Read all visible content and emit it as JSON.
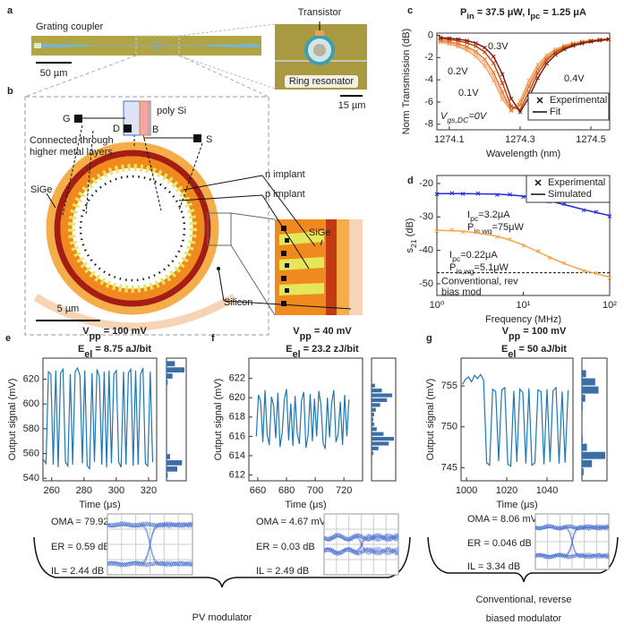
{
  "panel_labels": [
    "a",
    "b",
    "c",
    "d",
    "e",
    "f",
    "g"
  ],
  "panel_a": {
    "grating_coupler": "Grating coupler",
    "scale_left": "50 µm",
    "transistor": "Transistor",
    "ring_resonator": "Ring resonator",
    "scale_right": "15 µm"
  },
  "panel_b": {
    "poly_si": "poly Si",
    "g": "G",
    "d": "D",
    "b": "B",
    "s": "S",
    "connected": [
      "Connected through",
      "higher metal layers"
    ],
    "n_implant": "n implant",
    "p_implant": "p implant",
    "sige_left": "SiGe",
    "sige_right": "SiGe",
    "silicon": "Silicon",
    "scale": "5 µm"
  },
  "modulators": {
    "pv": "PV modulator",
    "conventional": [
      "Conventional, reverse",
      "biased modulator"
    ]
  },
  "chart_data": [
    {
      "type": "line",
      "title": [
        "P",
        "in",
        " = 37.5 μW, I",
        "pc",
        " = 1.25 μA"
      ],
      "xlabel": "Wavelength (nm)",
      "ylabel": "Norm Transmission (dB)",
      "xlim": [
        1274.065,
        1274.553
      ],
      "ylim": [
        -8.5,
        0.2
      ],
      "xticks": [
        1274.1,
        1274.3,
        1274.5
      ],
      "yticks": [
        0,
        -2,
        -4,
        -6,
        -8
      ],
      "legend": [
        "Experimental",
        "Fit"
      ],
      "x": [
        1274.075,
        1274.1,
        1274.125,
        1274.15,
        1274.175,
        1274.2,
        1274.225,
        1274.25,
        1274.275,
        1274.3,
        1274.325,
        1274.35,
        1274.375,
        1274.4,
        1274.425,
        1274.45,
        1274.475,
        1274.5,
        1274.525,
        1274.55
      ],
      "series": [
        {
          "label": [
            "V",
            "gs,DC",
            "=0V"
          ],
          "color": "#f6c29a",
          "values": [
            -0.54,
            -0.68,
            -0.89,
            -1.19,
            -1.67,
            -2.45,
            -3.7,
            -5.44,
            -6.75,
            -6.12,
            -4.35,
            -2.88,
            -1.94,
            -1.36,
            -0.99,
            -0.75,
            -0.59,
            -0.47,
            -0.38,
            -0.32
          ]
        },
        {
          "label": "0.1V",
          "color": "#f2a266",
          "values": [
            -0.62,
            -0.78,
            -1.02,
            -1.36,
            -1.9,
            -2.75,
            -4.05,
            -5.75,
            -6.8,
            -5.9,
            -4.05,
            -2.65,
            -1.78,
            -1.25,
            -0.92,
            -0.7,
            -0.55,
            -0.44,
            -0.36,
            -0.3
          ]
        },
        {
          "label": "0.2V",
          "color": "#e57b2e",
          "values": [
            -0.45,
            -0.58,
            -0.76,
            -1.03,
            -1.45,
            -2.15,
            -3.35,
            -5.1,
            -6.7,
            -6.3,
            -4.6,
            -3.05,
            -2.05,
            -1.43,
            -1.04,
            -0.79,
            -0.62,
            -0.49,
            -0.4,
            -0.33
          ]
        },
        {
          "label": "0.3V",
          "color": "#c0471a",
          "values": [
            -0.3,
            -0.38,
            -0.5,
            -0.68,
            -0.98,
            -1.5,
            -2.5,
            -4.3,
            -6.4,
            -6.7,
            -5.1,
            -3.4,
            -2.25,
            -1.56,
            -1.13,
            -0.85,
            -0.66,
            -0.52,
            -0.42,
            -0.35
          ]
        },
        {
          "label": "0.4V",
          "color": "#7a1f0c",
          "values": [
            -0.2,
            -0.26,
            -0.35,
            -0.48,
            -0.7,
            -1.1,
            -1.9,
            -3.5,
            -5.7,
            -6.9,
            -5.6,
            -3.85,
            -2.55,
            -1.75,
            -1.26,
            -0.94,
            -0.73,
            -0.57,
            -0.46,
            -0.38
          ]
        }
      ]
    },
    {
      "type": "line",
      "xlog": true,
      "xlabel": "Frequency (MHz)",
      "ylabel": [
        "s",
        "21",
        " (dB)"
      ],
      "xlim": [
        1,
        100
      ],
      "ylim": [
        -53.5,
        -17.6
      ],
      "xticks": [
        {
          "value": 1,
          "label": "10⁰"
        },
        {
          "value": 10,
          "label": "10¹"
        },
        {
          "value": 100,
          "label": "10²"
        }
      ],
      "yticks": [
        -20,
        -30,
        -40,
        -50
      ],
      "legend": [
        "Experimental",
        "Simulated"
      ],
      "x": [
        1,
        1.5,
        2,
        3,
        5,
        7,
        10,
        15,
        20,
        30,
        50,
        70,
        100
      ],
      "series": [
        {
          "color": "#2828d8",
          "labels": [
            [
              "I",
              "pc",
              "=3.2μA"
            ],
            [
              "P",
              "in,wg",
              "=75μW"
            ]
          ],
          "experimental": [
            -23.2,
            -22.9,
            -23.1,
            -23.0,
            -23.4,
            -23.3,
            -24.0,
            -24.3,
            -25.4,
            -26.1,
            -28.0,
            -28.5,
            -29.8
          ],
          "simulated": [
            -23.0,
            -23.0,
            -23.0,
            -23.1,
            -23.2,
            -23.4,
            -23.8,
            -24.5,
            -25.2,
            -26.3,
            -27.8,
            -28.7,
            -29.6
          ]
        },
        {
          "color": "#f5a44a",
          "labels": [
            [
              "I",
              "pc",
              "=0.22μA"
            ],
            [
              "P",
              "in,wg",
              "=5.1μW"
            ]
          ],
          "experimental": [
            -34.2,
            -33.9,
            -34.5,
            -34.6,
            -36.0,
            -36.7,
            -38.6,
            -40.2,
            -42.3,
            -43.8,
            -46.3,
            -46.8,
            -48.3
          ],
          "simulated": [
            -34.0,
            -34.1,
            -34.3,
            -34.8,
            -35.8,
            -36.9,
            -38.4,
            -40.5,
            -42.0,
            -44.0,
            -46.0,
            -47.0,
            -48.0
          ]
        }
      ],
      "reference": {
        "value": -46.7,
        "label": [
          "Conventional, rev",
          "bias mod"
        ]
      }
    },
    {
      "type": "trace",
      "title": [
        [
          "V",
          "pp",
          " = 100 mV"
        ],
        [
          "E",
          "el",
          " = 8.75 aJ/bit"
        ]
      ],
      "xlabel": "Time (μs)",
      "ylabel": "Output signal (mV)",
      "color": "#1f77b4",
      "xlim": [
        254.6,
        325
      ],
      "ylim": [
        538,
        637
      ],
      "xticks": [
        260,
        280,
        300,
        320
      ],
      "yticks": [
        540,
        560,
        580,
        600,
        620
      ],
      "x": [
        255,
        256.5,
        258,
        259.5,
        261,
        262.5,
        264,
        265.5,
        267,
        268.5,
        270,
        271.5,
        273,
        274.5,
        276,
        277.5,
        279,
        280.5,
        282,
        283.5,
        285,
        286.5,
        288,
        289.5,
        291,
        292.5,
        294,
        295.5,
        297,
        298.5,
        300,
        301.5,
        303,
        304.5,
        306,
        307.5,
        309,
        310.5,
        312,
        313.5,
        315,
        316.5,
        318,
        319.5,
        321,
        322.5
      ],
      "values": [
        555,
        552,
        626,
        624,
        551,
        627,
        549,
        625,
        628,
        553,
        550,
        624,
        551,
        626,
        629,
        623,
        552,
        627,
        550,
        548,
        625,
        553,
        628,
        622,
        551,
        626,
        549,
        627,
        552,
        624,
        627,
        553,
        549,
        626,
        551,
        625,
        628,
        550,
        627,
        551,
        624,
        629,
        552,
        550,
        626,
        553
      ],
      "hist": {
        "bins": [
          540,
          545,
          550,
          555,
          560,
          565,
          570,
          575,
          580,
          585,
          590,
          595,
          600,
          605,
          610,
          615,
          620,
          625,
          630,
          635
        ],
        "counts": [
          2,
          18,
          26,
          6,
          1,
          0,
          0,
          0,
          0,
          0,
          0,
          0,
          0,
          0,
          0,
          2,
          10,
          30,
          14
        ]
      },
      "metrics": [
        "OMA = 79.92 mV",
        "ER = 0.59 dB",
        "IL = 2.44 dB"
      ]
    },
    {
      "type": "trace",
      "title": [
        [
          "V",
          "pp",
          " = 40 mV"
        ],
        [
          "E",
          "el",
          " = 23.2 zJ/bit"
        ]
      ],
      "xlabel": "Time (μs)",
      "ylabel": "Output signal (mV)",
      "color": "#1f77b4",
      "xlim": [
        653.8,
        733
      ],
      "ylim": [
        611.4,
        624.1
      ],
      "xticks": [
        660,
        680,
        700,
        720
      ],
      "yticks": [
        612,
        614,
        616,
        618,
        620,
        622
      ],
      "x": [
        659,
        660.5,
        662,
        663.5,
        665,
        666.5,
        668,
        669.5,
        671,
        672.5,
        674,
        675.5,
        677,
        678.5,
        680,
        681.5,
        683,
        684.5,
        686,
        687.5,
        689,
        690.5,
        692,
        693.5,
        695,
        696.5,
        698,
        699.5,
        701,
        702.5,
        704,
        705.5,
        707,
        708.5,
        710,
        711.5,
        713,
        714.5,
        716,
        717.5,
        719,
        720.5,
        722,
        723.5
      ],
      "values": [
        616.0,
        620.3,
        619.6,
        615.4,
        620.8,
        616.2,
        615.1,
        620.1,
        619.2,
        615.8,
        620.5,
        614.9,
        616.4,
        619.8,
        620.9,
        615.6,
        619.4,
        615.0,
        620.2,
        616.3,
        615.2,
        619.7,
        620.6,
        614.8,
        616.1,
        620.4,
        615.5,
        619.9,
        616.0,
        620.7,
        619.3,
        615.3,
        614.7,
        620.0,
        615.9,
        619.5,
        620.8,
        615.4,
        616.2,
        619.6,
        615.1,
        620.3,
        616.0,
        619.8
      ],
      "hist": {
        "bins": [
          614,
          614.5,
          615,
          615.5,
          616,
          616.5,
          617,
          617.5,
          618,
          618.5,
          619,
          619.5,
          620,
          620.5,
          621,
          621.5
        ],
        "counts": [
          2,
          8,
          20,
          26,
          14,
          6,
          3,
          2,
          3,
          5,
          10,
          18,
          24,
          12,
          4
        ]
      },
      "metrics": [
        "OMA = 4.67 mV",
        "ER = 0.03 dB",
        "IL = 2.49 dB"
      ]
    },
    {
      "type": "trace",
      "title": [
        [
          "V",
          "pp",
          " = 100 mV"
        ],
        [
          "E",
          "el",
          " = 50 aJ/bit"
        ]
      ],
      "xlabel": "Time (μs)",
      "ylabel": "Output signal (mV)",
      "color": "#1f77b4",
      "xlim": [
        997.3,
        1052.9
      ],
      "ylim": [
        743.4,
        758.4
      ],
      "xticks": [
        1000,
        1020,
        1040
      ],
      "yticks": [
        745,
        750,
        755
      ],
      "x": [
        998,
        999.5,
        1001,
        1002.5,
        1004,
        1005.5,
        1007,
        1008.5,
        1010,
        1011.5,
        1013,
        1014.5,
        1016,
        1017.5,
        1019,
        1020.5,
        1022,
        1023.5,
        1025,
        1026.5,
        1028,
        1029.5,
        1031,
        1032.5,
        1034,
        1035.5,
        1037,
        1038.5,
        1040,
        1041.5,
        1043,
        1044.5,
        1046,
        1047.5,
        1049,
        1050.5
      ],
      "values": [
        755.2,
        755.8,
        756.1,
        755.5,
        756.3,
        755.9,
        756.4,
        755.7,
        745.6,
        745.3,
        754.6,
        754.3,
        745.8,
        754.5,
        754.8,
        745.4,
        745.2,
        754.4,
        745.7,
        754.6,
        754.2,
        745.5,
        754.7,
        745.3,
        745.6,
        754.5,
        754.3,
        745.4,
        754.6,
        745.7,
        754.4,
        754.8,
        745.5,
        754.3,
        745.6,
        754.5
      ],
      "hist": {
        "bins": [
          744,
          745,
          746,
          747,
          748,
          749,
          750,
          751,
          752,
          753,
          754,
          755,
          756,
          757
        ],
        "counts": [
          2,
          12,
          28,
          6,
          1,
          0,
          0,
          0,
          1,
          4,
          20,
          16,
          5
        ]
      },
      "metrics": [
        "OMA = 8.06 mV",
        "ER = 0.046 dB",
        "IL = 3.34 dB"
      ]
    }
  ]
}
